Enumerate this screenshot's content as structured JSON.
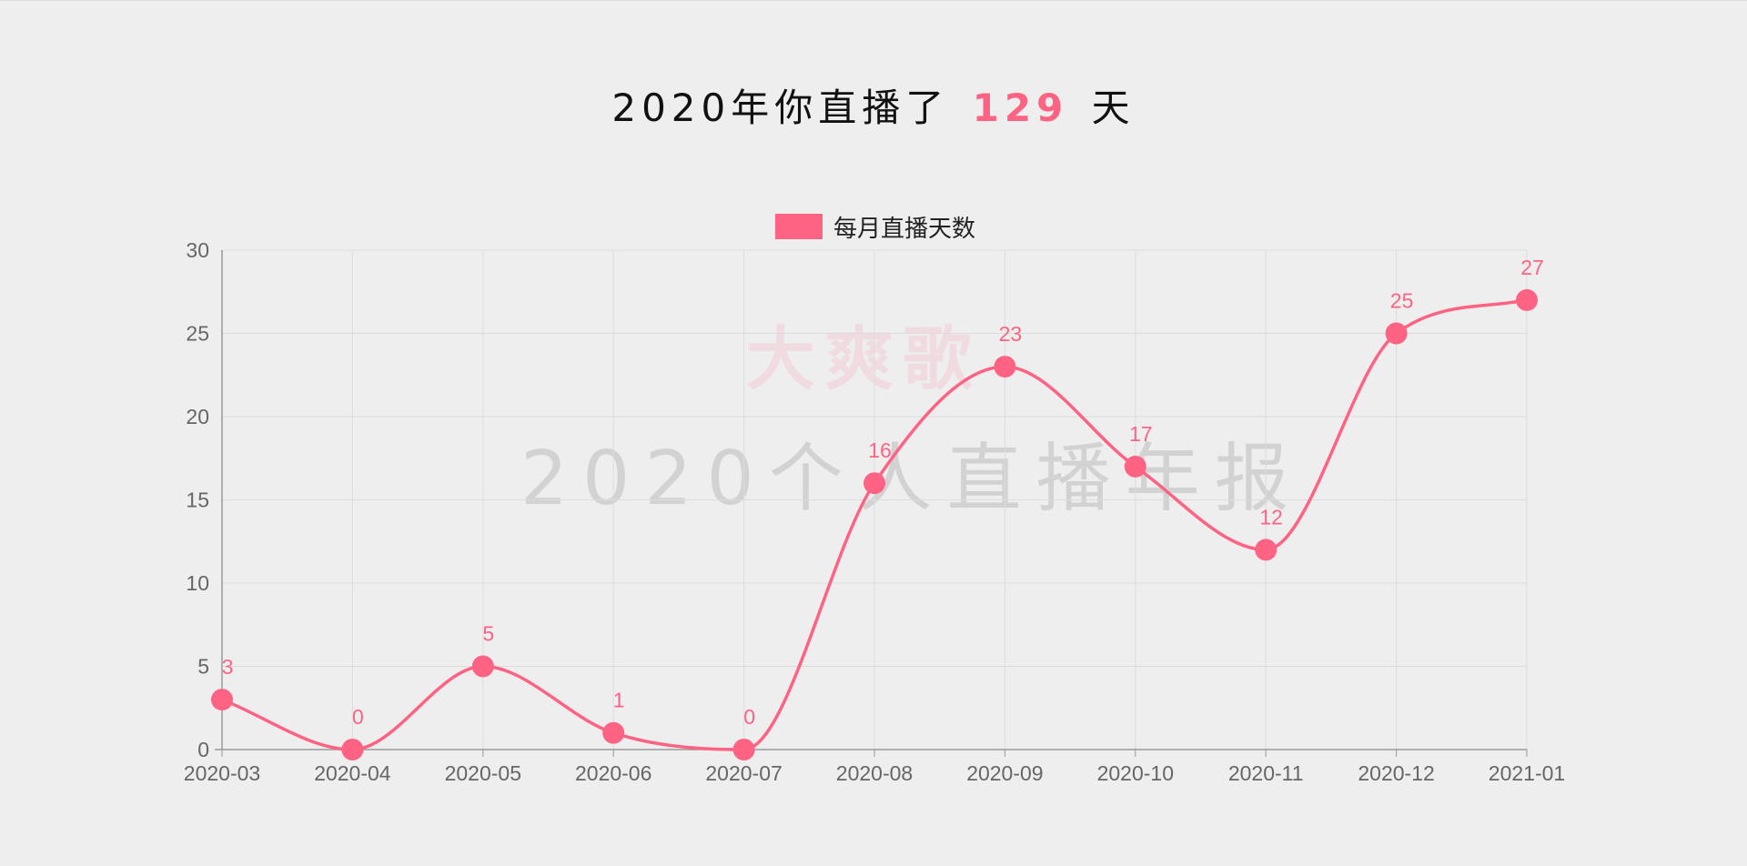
{
  "header": {
    "prefix": "2020年你直播了",
    "total_days": "129",
    "suffix": "天"
  },
  "watermark": {
    "brand": "大爽歌",
    "title": "2020个人直播年报"
  },
  "colors": {
    "accent": "#ff6384",
    "background": "#eeeeee",
    "grid": "#dcdcdc",
    "axis": "#999999",
    "tick_text": "#666666"
  },
  "chart_data": {
    "type": "line",
    "categories": [
      "2020-03",
      "2020-04",
      "2020-05",
      "2020-06",
      "2020-07",
      "2020-08",
      "2020-09",
      "2020-10",
      "2020-11",
      "2020-12",
      "2021-01"
    ],
    "series": [
      {
        "name": "每月直播天数",
        "values": [
          3,
          0,
          5,
          1,
          0,
          16,
          23,
          17,
          12,
          25,
          27
        ],
        "color": "#ff6384"
      }
    ],
    "ylim": [
      0,
      30
    ],
    "yticks": [
      "0",
      "5",
      "10",
      "15",
      "20",
      "25",
      "30"
    ],
    "grid": true,
    "legend": "top-center",
    "data_labels": true,
    "smooth": true
  }
}
